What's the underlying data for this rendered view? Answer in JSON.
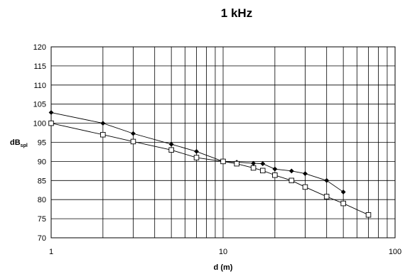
{
  "chart_data": {
    "type": "line",
    "title": "1 kHz",
    "xlabel": "d (m)",
    "ylabel": "dB",
    "ylabel_sub": "spl",
    "xscale": "log",
    "xlim": [
      1,
      100
    ],
    "ylim": [
      70,
      120
    ],
    "yticks": [
      70,
      75,
      80,
      85,
      90,
      95,
      100,
      105,
      110,
      115,
      120
    ],
    "xticks": [
      1,
      10,
      100
    ],
    "grid": true,
    "legend": "none",
    "series": [
      {
        "marker": "filled-diamond",
        "color": "#000000",
        "x": [
          1,
          2,
          3,
          5,
          7,
          10,
          12,
          15,
          17,
          20,
          25,
          30,
          40,
          50
        ],
        "y": [
          102.8,
          100,
          97.3,
          94.5,
          92.6,
          90,
          89.8,
          89.5,
          89.4,
          88,
          87.5,
          86.8,
          85,
          82
        ]
      },
      {
        "marker": "open-square",
        "color": "#000000",
        "x": [
          1,
          2,
          3,
          5,
          7,
          10,
          12,
          15,
          17,
          20,
          25,
          30,
          40,
          50,
          70
        ],
        "y": [
          100,
          97,
          95.2,
          93,
          91,
          90,
          89.4,
          88.3,
          87.6,
          86.4,
          85,
          83.3,
          80.8,
          79,
          76
        ]
      }
    ]
  }
}
